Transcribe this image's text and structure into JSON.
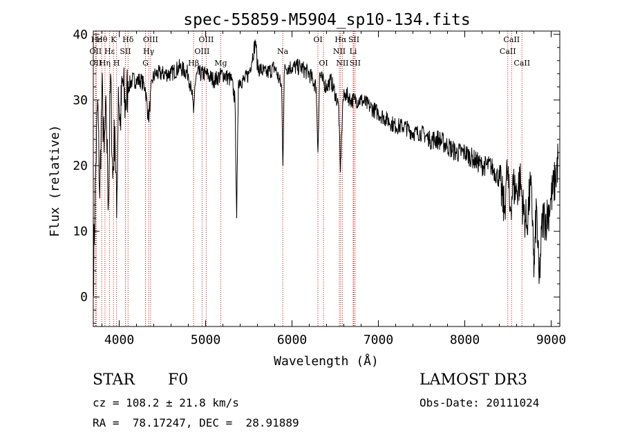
{
  "chart_data": {
    "type": "line",
    "title": "spec-55859-M5904_sp10-134.fits",
    "xlabel": "Wavelength (Å)",
    "ylabel": "Flux (relative)",
    "xlim": [
      3700,
      9100
    ],
    "ylim": [
      -4.5,
      40.5
    ],
    "xticks": [
      4000,
      5000,
      6000,
      7000,
      8000,
      9000
    ],
    "xtick_labels": [
      "4000",
      "5000",
      "6000",
      "7000",
      "8000",
      "9000"
    ],
    "yticks": [
      0,
      10,
      20,
      30,
      40
    ],
    "ytick_labels": [
      "0",
      "10",
      "20",
      "30",
      "40"
    ],
    "series": [
      {
        "name": "flux",
        "x": [
          3700,
          3725,
          3750,
          3775,
          3800,
          3825,
          3850,
          3875,
          3900,
          3925,
          3950,
          3970,
          3990,
          4010,
          4040,
          4070,
          4100,
          4150,
          4200,
          4250,
          4300,
          4340,
          4380,
          4420,
          4500,
          4600,
          4700,
          4800,
          4850,
          4861,
          4875,
          4900,
          5000,
          5100,
          5200,
          5300,
          5340,
          5360,
          5380,
          5450,
          5500,
          5580,
          5600,
          5700,
          5800,
          5880,
          5895,
          5910,
          5925,
          6000,
          6100,
          6200,
          6280,
          6300,
          6320,
          6350,
          6400,
          6450,
          6500,
          6540,
          6560,
          6575,
          6590,
          6620,
          6680,
          6720,
          6800,
          6900,
          7000,
          7100,
          7200,
          7300,
          7400,
          7500,
          7600,
          7700,
          7800,
          7900,
          8000,
          8100,
          8200,
          8300,
          8400,
          8460,
          8480,
          8500,
          8520,
          8560,
          8600,
          8640,
          8680,
          8720,
          8760,
          8790,
          8800,
          8830,
          8860,
          8900,
          8950,
          9000,
          9050,
          9080
        ],
        "y": [
          2,
          18,
          30,
          15,
          32,
          22,
          28,
          14,
          34,
          18,
          26,
          12,
          32,
          26,
          33,
          29,
          32,
          33,
          33,
          33,
          32,
          27,
          33,
          34,
          34,
          34,
          35,
          34,
          30,
          28,
          32,
          34,
          34,
          33,
          34,
          33,
          30,
          12,
          33,
          33,
          34,
          39,
          35,
          34,
          35,
          32,
          20,
          34,
          35,
          35,
          35,
          34,
          32,
          22,
          34,
          33,
          32,
          33,
          31,
          29,
          19,
          25,
          30,
          31,
          30,
          30,
          30,
          29,
          28,
          27,
          26,
          26,
          25,
          25,
          24,
          24,
          23,
          22,
          22,
          21,
          20,
          20,
          18,
          13,
          18,
          19,
          13,
          17,
          16,
          18,
          13,
          11,
          17,
          11,
          3,
          14,
          2,
          12,
          12,
          15,
          18,
          21
        ]
      }
    ],
    "lines": [
      {
        "label": "Hε",
        "wl": 3735,
        "row": 0
      },
      {
        "label": "OII",
        "wl": 3727,
        "row": 1
      },
      {
        "label": "OII",
        "wl": 3727,
        "row": 2
      },
      {
        "label": "Hθ",
        "wl": 3798,
        "row": 0
      },
      {
        "label": "Hη",
        "wl": 3835,
        "row": 2
      },
      {
        "label": "Hε",
        "wl": 3889,
        "row": 1
      },
      {
        "label": "K",
        "wl": 3934,
        "row": 0
      },
      {
        "label": "H",
        "wl": 3969,
        "row": 2
      },
      {
        "label": "Hδ",
        "wl": 4102,
        "row": 0
      },
      {
        "label": "SII",
        "wl": 4072,
        "row": 1
      },
      {
        "label": "OIII",
        "wl": 4363,
        "row": 0
      },
      {
        "label": "Hγ",
        "wl": 4341,
        "row": 1
      },
      {
        "label": "G",
        "wl": 4304,
        "row": 2
      },
      {
        "label": "Hβ",
        "wl": 4861,
        "row": 2
      },
      {
        "label": "OIII",
        "wl": 5007,
        "row": 0
      },
      {
        "label": "OIII",
        "wl": 4959,
        "row": 1
      },
      {
        "label": "Mg",
        "wl": 5175,
        "row": 2
      },
      {
        "label": "Na",
        "wl": 5893,
        "row": 1
      },
      {
        "label": "OI",
        "wl": 6300,
        "row": 0
      },
      {
        "label": "OI",
        "wl": 6364,
        "row": 2
      },
      {
        "label": "Hα",
        "wl": 6563,
        "row": 0
      },
      {
        "label": "NII",
        "wl": 6548,
        "row": 1
      },
      {
        "label": "NII",
        "wl": 6583,
        "row": 2
      },
      {
        "label": "SII",
        "wl": 6716,
        "row": 0
      },
      {
        "label": "Li",
        "wl": 6708,
        "row": 1
      },
      {
        "label": "SII",
        "wl": 6731,
        "row": 2
      },
      {
        "label": "CaII",
        "wl": 8498,
        "row": 1
      },
      {
        "label": "CaII",
        "wl": 8542,
        "row": 0
      },
      {
        "label": "CaII",
        "wl": 8662,
        "row": 2
      }
    ],
    "line_color": "#cc0000"
  },
  "info": {
    "class": "STAR",
    "subclass": "F0",
    "survey": "LAMOST DR3",
    "cz": "cz = 108.2 ± 21.8 km/s",
    "obsdate": "Obs-Date: 20111024",
    "radec": "RA =  78.17247, DEC =  28.91889"
  }
}
